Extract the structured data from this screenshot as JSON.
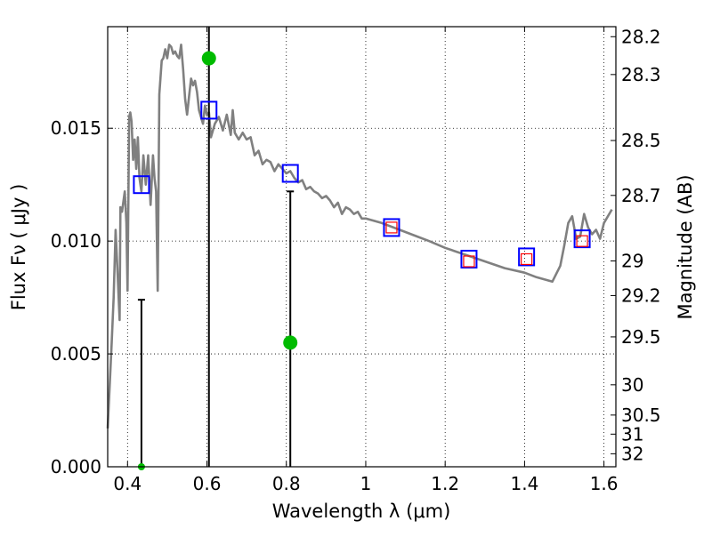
{
  "chart_data": {
    "type": "scatter",
    "xlabel": "Wavelength  λ (μm)",
    "ylabel": "Flux  Fν  ( μJy )",
    "ylabel_right": "Magnitude (AB)",
    "xlim": [
      0.35,
      1.63
    ],
    "ylim": [
      0,
      0.0195
    ],
    "grid": true,
    "x_ticks": [
      0.4,
      0.6,
      0.8,
      1.0,
      1.2,
      1.4,
      1.6
    ],
    "x_tick_labels": [
      "0.4",
      "0.6",
      "0.8",
      "1",
      "1.2",
      "1.4",
      "1.6"
    ],
    "y_ticks": [
      0.0,
      0.005,
      0.01,
      0.015
    ],
    "y_tick_labels": [
      "0.000",
      "0.005",
      "0.010",
      "0.015"
    ],
    "mag_ticks": [
      28.2,
      28.3,
      28.5,
      28.7,
      29,
      29.2,
      29.5,
      30,
      30.5,
      31,
      32
    ],
    "mag_tick_labels": [
      "28.2",
      "28.3",
      "28.5",
      "28.7",
      "29",
      "29.2",
      "29.5",
      "30",
      "30.5",
      "31",
      "32"
    ],
    "series": [
      {
        "kind": "model-sed-line",
        "color": "#808080",
        "x": [
          0.35,
          0.36,
          0.365,
          0.37,
          0.375,
          0.38,
          0.382,
          0.386,
          0.39,
          0.393,
          0.397,
          0.4,
          0.404,
          0.407,
          0.41,
          0.414,
          0.418,
          0.422,
          0.426,
          0.43,
          0.435,
          0.44,
          0.446,
          0.452,
          0.458,
          0.464,
          0.468,
          0.472,
          0.476,
          0.48,
          0.486,
          0.49,
          0.495,
          0.5,
          0.505,
          0.51,
          0.515,
          0.52,
          0.525,
          0.53,
          0.535,
          0.54,
          0.545,
          0.55,
          0.555,
          0.56,
          0.565,
          0.57,
          0.575,
          0.58,
          0.585,
          0.59,
          0.595,
          0.6,
          0.605,
          0.61,
          0.62,
          0.63,
          0.64,
          0.65,
          0.66,
          0.665,
          0.67,
          0.68,
          0.69,
          0.7,
          0.71,
          0.72,
          0.73,
          0.74,
          0.75,
          0.76,
          0.77,
          0.78,
          0.79,
          0.8,
          0.81,
          0.82,
          0.83,
          0.84,
          0.85,
          0.86,
          0.87,
          0.88,
          0.89,
          0.9,
          0.91,
          0.92,
          0.93,
          0.94,
          0.95,
          0.96,
          0.97,
          0.98,
          0.99,
          1.0,
          1.02,
          1.04,
          1.07,
          1.1,
          1.13,
          1.16,
          1.2,
          1.25,
          1.3,
          1.35,
          1.4,
          1.43,
          1.45,
          1.47,
          1.49,
          1.5,
          1.51,
          1.52,
          1.53,
          1.54,
          1.55,
          1.56,
          1.57,
          1.58,
          1.59,
          1.6,
          1.62
        ],
        "values": [
          0.0017,
          0.0055,
          0.0075,
          0.0105,
          0.0085,
          0.0065,
          0.0115,
          0.0113,
          0.0118,
          0.0122,
          0.0108,
          0.0078,
          0.0155,
          0.0157,
          0.0153,
          0.0136,
          0.0145,
          0.0132,
          0.0146,
          0.0128,
          0.0122,
          0.0138,
          0.0125,
          0.0138,
          0.0116,
          0.0138,
          0.0128,
          0.0122,
          0.0078,
          0.0165,
          0.018,
          0.0181,
          0.0185,
          0.0181,
          0.0187,
          0.0186,
          0.0183,
          0.0184,
          0.0182,
          0.0181,
          0.0187,
          0.0176,
          0.0163,
          0.0156,
          0.0164,
          0.0172,
          0.0169,
          0.0171,
          0.0166,
          0.0158,
          0.0155,
          0.0152,
          0.016,
          0.0156,
          0.0157,
          0.0146,
          0.0152,
          0.0155,
          0.0149,
          0.0156,
          0.0147,
          0.0158,
          0.0148,
          0.0145,
          0.0148,
          0.0145,
          0.0146,
          0.0138,
          0.014,
          0.0134,
          0.0136,
          0.0135,
          0.0131,
          0.0134,
          0.0132,
          0.013,
          0.0131,
          0.0128,
          0.0126,
          0.0127,
          0.0123,
          0.0124,
          0.0122,
          0.0121,
          0.0119,
          0.012,
          0.0118,
          0.0115,
          0.0117,
          0.0112,
          0.0115,
          0.0114,
          0.0112,
          0.0113,
          0.011,
          0.011,
          0.0109,
          0.0108,
          0.0106,
          0.0104,
          0.0102,
          0.01,
          0.0097,
          0.0094,
          0.0091,
          0.0088,
          0.0086,
          0.0084,
          0.0083,
          0.0082,
          0.0089,
          0.0098,
          0.0108,
          0.0111,
          0.0101,
          0.0102,
          0.0112,
          0.0106,
          0.0103,
          0.0105,
          0.0101,
          0.0108,
          0.0114
        ]
      },
      {
        "kind": "model-photometry",
        "marker": "open-square",
        "color": "#0000ff",
        "x": [
          0.435,
          0.605,
          0.81,
          1.065,
          1.26,
          1.405,
          1.545
        ],
        "values": [
          0.0125,
          0.0158,
          0.013,
          0.0106,
          0.0092,
          0.0093,
          0.0101
        ]
      },
      {
        "kind": "observed-photometry",
        "marker": "small-square",
        "color": "#ff0000",
        "x": [
          1.065,
          1.26,
          1.405,
          1.545
        ],
        "values": [
          0.0106,
          0.0091,
          0.0092,
          0.01
        ]
      },
      {
        "kind": "observed-flux-with-errors",
        "marker": "filled-circle",
        "color": "#00bb00",
        "x": [
          0.435,
          0.605,
          0.81
        ],
        "values": [
          0.0,
          0.0181,
          0.0055
        ],
        "err_low": [
          0.0,
          0.0181,
          0.0055
        ],
        "err_high": [
          0.0074,
          0.0195,
          0.0122
        ]
      }
    ]
  }
}
